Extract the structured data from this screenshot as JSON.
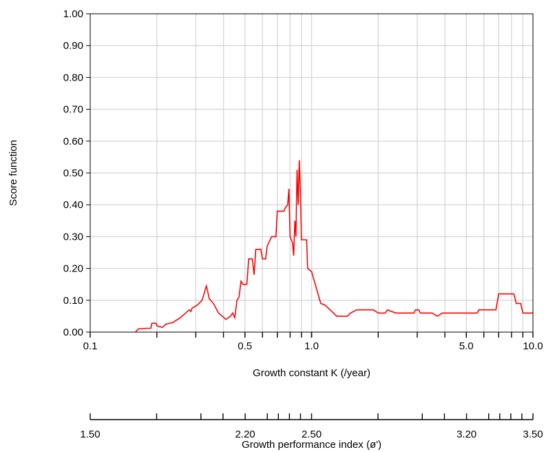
{
  "chart_data": {
    "type": "line",
    "ylabel": "Score function",
    "xlabel": "Growth constant K (/year)",
    "x_scale": "log",
    "xlim": [
      0.1,
      10.0
    ],
    "ylim": [
      0.0,
      1.0
    ],
    "grid": true,
    "line_color": "#ff0000",
    "grid_color": "#d8d8d8",
    "x_ticks": [
      {
        "value": 0.1,
        "label": "0.1"
      },
      {
        "value": 0.5,
        "label": "0.5"
      },
      {
        "value": 1.0,
        "label": "1.0"
      },
      {
        "value": 5.0,
        "label": "5.0"
      },
      {
        "value": 10.0,
        "label": "10.0"
      }
    ],
    "x_gridlines": [
      0.2,
      0.3,
      0.4,
      0.5,
      0.6,
      0.7,
      0.8,
      0.9,
      1.0,
      2.0,
      3.0,
      4.0,
      5.0,
      6.0,
      7.0,
      8.0,
      9.0
    ],
    "y_ticks": [
      {
        "value": 0.0,
        "label": "0.00"
      },
      {
        "value": 0.1,
        "label": "0.10"
      },
      {
        "value": 0.2,
        "label": "0.20"
      },
      {
        "value": 0.3,
        "label": "0.30"
      },
      {
        "value": 0.4,
        "label": "0.40"
      },
      {
        "value": 0.5,
        "label": "0.50"
      },
      {
        "value": 0.6,
        "label": "0.60"
      },
      {
        "value": 0.7,
        "label": "0.70"
      },
      {
        "value": 0.8,
        "label": "0.80"
      },
      {
        "value": 0.9,
        "label": "0.90"
      },
      {
        "value": 1.0,
        "label": "1.00"
      }
    ],
    "secondary_axis": {
      "xlabel": "Growth performance index (ø')",
      "labels": [
        {
          "value": 1.5,
          "label": "1.50"
        },
        {
          "value": 2.2,
          "label": "2.20"
        },
        {
          "value": 2.5,
          "label": "2.50"
        },
        {
          "value": 3.2,
          "label": "3.20"
        },
        {
          "value": 3.5,
          "label": "3.50"
        }
      ],
      "ticks": [
        1.5,
        1.8,
        2.0,
        2.1,
        2.2,
        2.3,
        2.35,
        2.4,
        2.45,
        2.5,
        2.8,
        3.0,
        3.1,
        3.2,
        3.3,
        3.35,
        3.4,
        3.45,
        3.5
      ]
    },
    "series": [
      {
        "points": [
          [
            0.16,
            0.0
          ],
          [
            0.165,
            0.01
          ],
          [
            0.18,
            0.012
          ],
          [
            0.188,
            0.012
          ],
          [
            0.19,
            0.028
          ],
          [
            0.198,
            0.028
          ],
          [
            0.2,
            0.02
          ],
          [
            0.212,
            0.015
          ],
          [
            0.22,
            0.025
          ],
          [
            0.236,
            0.03
          ],
          [
            0.255,
            0.045
          ],
          [
            0.27,
            0.06
          ],
          [
            0.28,
            0.07
          ],
          [
            0.285,
            0.065
          ],
          [
            0.288,
            0.075
          ],
          [
            0.305,
            0.085
          ],
          [
            0.32,
            0.1
          ],
          [
            0.335,
            0.145
          ],
          [
            0.34,
            0.125
          ],
          [
            0.345,
            0.105
          ],
          [
            0.36,
            0.09
          ],
          [
            0.38,
            0.06
          ],
          [
            0.41,
            0.04
          ],
          [
            0.43,
            0.05
          ],
          [
            0.44,
            0.06
          ],
          [
            0.45,
            0.045
          ],
          [
            0.46,
            0.1
          ],
          [
            0.47,
            0.11
          ],
          [
            0.48,
            0.16
          ],
          [
            0.49,
            0.15
          ],
          [
            0.51,
            0.15
          ],
          [
            0.52,
            0.23
          ],
          [
            0.54,
            0.23
          ],
          [
            0.55,
            0.18
          ],
          [
            0.56,
            0.26
          ],
          [
            0.59,
            0.26
          ],
          [
            0.6,
            0.23
          ],
          [
            0.62,
            0.23
          ],
          [
            0.63,
            0.27
          ],
          [
            0.66,
            0.3
          ],
          [
            0.69,
            0.3
          ],
          [
            0.7,
            0.38
          ],
          [
            0.75,
            0.38
          ],
          [
            0.76,
            0.39
          ],
          [
            0.78,
            0.4
          ],
          [
            0.79,
            0.45
          ],
          [
            0.8,
            0.3
          ],
          [
            0.81,
            0.29
          ],
          [
            0.82,
            0.28
          ],
          [
            0.83,
            0.24
          ],
          [
            0.84,
            0.35
          ],
          [
            0.85,
            0.3
          ],
          [
            0.86,
            0.51
          ],
          [
            0.87,
            0.4
          ],
          [
            0.88,
            0.54
          ],
          [
            0.89,
            0.45
          ],
          [
            0.9,
            0.29
          ],
          [
            0.95,
            0.29
          ],
          [
            0.96,
            0.2
          ],
          [
            1.0,
            0.19
          ],
          [
            1.1,
            0.09
          ],
          [
            1.15,
            0.085
          ],
          [
            1.3,
            0.05
          ],
          [
            1.45,
            0.05
          ],
          [
            1.5,
            0.06
          ],
          [
            1.6,
            0.07
          ],
          [
            1.9,
            0.07
          ],
          [
            2.0,
            0.06
          ],
          [
            2.15,
            0.06
          ],
          [
            2.2,
            0.07
          ],
          [
            2.4,
            0.06
          ],
          [
            2.9,
            0.06
          ],
          [
            2.95,
            0.07
          ],
          [
            3.05,
            0.07
          ],
          [
            3.1,
            0.06
          ],
          [
            3.5,
            0.06
          ],
          [
            3.7,
            0.05
          ],
          [
            3.9,
            0.06
          ],
          [
            5.0,
            0.06
          ],
          [
            5.6,
            0.06
          ],
          [
            5.7,
            0.07
          ],
          [
            6.8,
            0.07
          ],
          [
            7.0,
            0.12
          ],
          [
            8.2,
            0.12
          ],
          [
            8.4,
            0.09
          ],
          [
            8.8,
            0.09
          ],
          [
            9.0,
            0.06
          ],
          [
            10.0,
            0.06
          ]
        ]
      }
    ]
  }
}
